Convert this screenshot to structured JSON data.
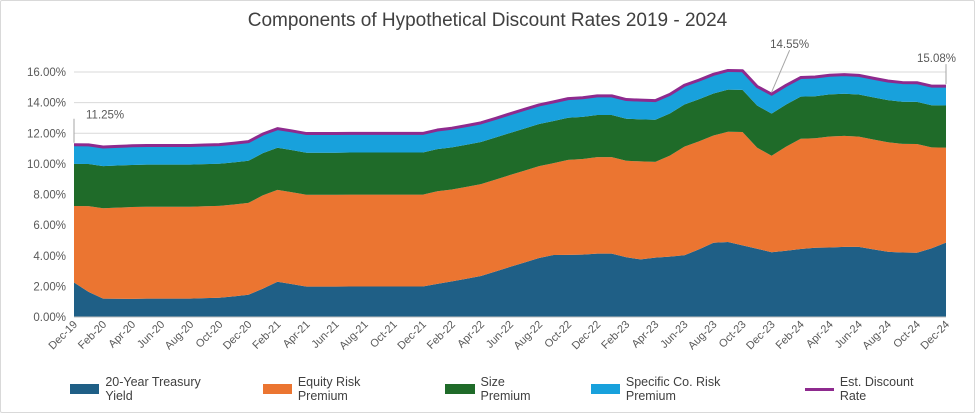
{
  "chart_data": {
    "type": "area",
    "title": "Components of Hypothetical Discount Rates 2019 - 2024",
    "ylim": [
      0,
      16
    ],
    "yticks": [
      "0.00%",
      "2.00%",
      "4.00%",
      "6.00%",
      "8.00%",
      "10.00%",
      "12.00%",
      "14.00%",
      "16.00%"
    ],
    "grid": true,
    "legend_position": "bottom",
    "categories": [
      "Dec-19",
      "Jan-20",
      "Feb-20",
      "Mar-20",
      "Apr-20",
      "May-20",
      "Jun-20",
      "Jul-20",
      "Aug-20",
      "Sep-20",
      "Oct-20",
      "Nov-20",
      "Dec-20",
      "Jan-21",
      "Feb-21",
      "Mar-21",
      "Apr-21",
      "May-21",
      "Jun-21",
      "Jul-21",
      "Aug-21",
      "Sep-21",
      "Oct-21",
      "Nov-21",
      "Dec-21",
      "Jan-22",
      "Feb-22",
      "Mar-22",
      "Apr-22",
      "May-22",
      "Jun-22",
      "Jul-22",
      "Aug-22",
      "Sep-22",
      "Oct-22",
      "Nov-22",
      "Dec-22",
      "Jan-23",
      "Feb-23",
      "Mar-23",
      "Apr-23",
      "May-23",
      "Jun-23",
      "Jul-23",
      "Aug-23",
      "Sep-23",
      "Oct-23",
      "Nov-23",
      "Dec-23",
      "Jan-24",
      "Feb-24",
      "Mar-24",
      "Apr-24",
      "May-24",
      "Jun-24",
      "Jul-24",
      "Aug-24",
      "Sep-24",
      "Oct-24",
      "Nov-24",
      "Dec-24"
    ],
    "xtick_labels": [
      "Dec-19",
      "Feb-20",
      "Apr-20",
      "Jun-20",
      "Aug-20",
      "Oct-20",
      "Dec-20",
      "Feb-21",
      "Apr-21",
      "Jun-21",
      "Aug-21",
      "Oct-21",
      "Dec-21",
      "Feb-22",
      "Apr-22",
      "Jun-22",
      "Aug-22",
      "Oct-22",
      "Dec-22",
      "Feb-23",
      "Apr-23",
      "Jun-23",
      "Aug-23",
      "Oct-23",
      "Dec-23",
      "Feb-24",
      "Apr-24",
      "Jun-24",
      "Aug-24",
      "Oct-24",
      "Dec-24"
    ],
    "stacked_series": [
      {
        "name": "20-Year Treasury Yield",
        "color": "#1f5f86",
        "values": [
          2.25,
          1.64,
          1.2,
          1.19,
          1.18,
          1.2,
          1.2,
          1.2,
          1.2,
          1.23,
          1.26,
          1.35,
          1.45,
          1.85,
          2.3,
          2.15,
          1.98,
          1.98,
          1.98,
          1.99,
          1.99,
          1.99,
          1.99,
          1.99,
          1.99,
          2.16,
          2.33,
          2.5,
          2.68,
          2.97,
          3.27,
          3.56,
          3.85,
          4.05,
          4.06,
          4.07,
          4.14,
          4.14,
          3.9,
          3.76,
          3.88,
          3.94,
          4.03,
          4.42,
          4.85,
          4.9,
          4.68,
          4.46,
          4.23,
          4.33,
          4.44,
          4.52,
          4.54,
          4.58,
          4.58,
          4.42,
          4.26,
          4.21,
          4.2,
          4.48,
          4.86
        ]
      },
      {
        "name": "Equity Risk Premium",
        "color": "#eb7531",
        "values": [
          5.0,
          5.6,
          5.9,
          5.95,
          6.0,
          6.0,
          6.0,
          6.0,
          6.0,
          6.0,
          6.0,
          6.0,
          6.0,
          6.1,
          6.0,
          6.0,
          6.0,
          6.0,
          6.0,
          6.0,
          6.0,
          6.0,
          6.0,
          6.0,
          6.0,
          6.05,
          6.0,
          6.0,
          6.0,
          6.0,
          6.0,
          6.0,
          6.0,
          6.0,
          6.2,
          6.25,
          6.3,
          6.3,
          6.3,
          6.4,
          6.25,
          6.6,
          7.1,
          7.05,
          7.0,
          7.2,
          7.4,
          6.6,
          6.3,
          6.8,
          7.2,
          7.15,
          7.25,
          7.25,
          7.2,
          7.17,
          7.15,
          7.1,
          7.1,
          6.6,
          6.2
        ]
      },
      {
        "name": "Size Premium",
        "color": "#1f6b29",
        "values": [
          2.75,
          2.75,
          2.75,
          2.75,
          2.75,
          2.75,
          2.75,
          2.75,
          2.75,
          2.75,
          2.75,
          2.75,
          2.75,
          2.75,
          2.75,
          2.75,
          2.75,
          2.75,
          2.75,
          2.75,
          2.75,
          2.75,
          2.75,
          2.75,
          2.75,
          2.75,
          2.75,
          2.75,
          2.75,
          2.75,
          2.75,
          2.75,
          2.75,
          2.75,
          2.75,
          2.75,
          2.75,
          2.75,
          2.75,
          2.75,
          2.75,
          2.75,
          2.75,
          2.75,
          2.75,
          2.75,
          2.75,
          2.75,
          2.75,
          2.75,
          2.75,
          2.75,
          2.75,
          2.75,
          2.75,
          2.75,
          2.75,
          2.75,
          2.75,
          2.75,
          2.75
        ]
      },
      {
        "name": "Specific Co. Risk Premium",
        "color": "#18a1dc",
        "values": [
          1.25,
          1.25,
          1.25,
          1.25,
          1.25,
          1.25,
          1.25,
          1.25,
          1.25,
          1.25,
          1.25,
          1.25,
          1.25,
          1.25,
          1.25,
          1.25,
          1.25,
          1.25,
          1.25,
          1.25,
          1.25,
          1.25,
          1.25,
          1.25,
          1.25,
          1.25,
          1.25,
          1.25,
          1.25,
          1.25,
          1.25,
          1.25,
          1.25,
          1.25,
          1.25,
          1.25,
          1.25,
          1.25,
          1.25,
          1.25,
          1.25,
          1.25,
          1.25,
          1.25,
          1.25,
          1.25,
          1.25,
          1.25,
          1.25,
          1.25,
          1.25,
          1.25,
          1.25,
          1.25,
          1.25,
          1.25,
          1.25,
          1.25,
          1.25,
          1.25,
          1.25
        ]
      }
    ],
    "line_series": {
      "name": "Est. Discount Rate",
      "color": "#8e2a8e",
      "values": [
        11.25,
        11.24,
        11.1,
        11.14,
        11.18,
        11.2,
        11.2,
        11.2,
        11.2,
        11.23,
        11.26,
        11.35,
        11.45,
        11.95,
        12.3,
        12.15,
        11.98,
        11.98,
        11.98,
        11.99,
        11.99,
        11.99,
        11.99,
        11.99,
        11.99,
        12.21,
        12.33,
        12.5,
        12.68,
        12.97,
        13.27,
        13.56,
        13.85,
        14.05,
        14.26,
        14.32,
        14.44,
        14.44,
        14.2,
        14.16,
        14.13,
        14.54,
        15.13,
        15.47,
        15.85,
        16.1,
        16.08,
        15.06,
        14.55,
        15.13,
        15.64,
        15.67,
        15.79,
        15.83,
        15.78,
        15.59,
        15.41,
        15.31,
        15.3,
        15.08,
        15.08
      ]
    },
    "annotations": [
      {
        "label": "11.25%",
        "index": 0
      },
      {
        "label": "14.55%",
        "index": 48
      },
      {
        "label": "15.08%",
        "index": 60
      }
    ]
  },
  "legend": {
    "items": [
      {
        "label": "20-Year Treasury Yield",
        "color": "#1f5f86",
        "kind": "area"
      },
      {
        "label": "Equity Risk Premium",
        "color": "#eb7531",
        "kind": "area"
      },
      {
        "label": "Size Premium",
        "color": "#1f6b29",
        "kind": "area"
      },
      {
        "label": "Specific Co. Risk Premium",
        "color": "#18a1dc",
        "kind": "area"
      },
      {
        "label": "Est. Discount Rate",
        "color": "#8e2a8e",
        "kind": "line"
      }
    ]
  }
}
